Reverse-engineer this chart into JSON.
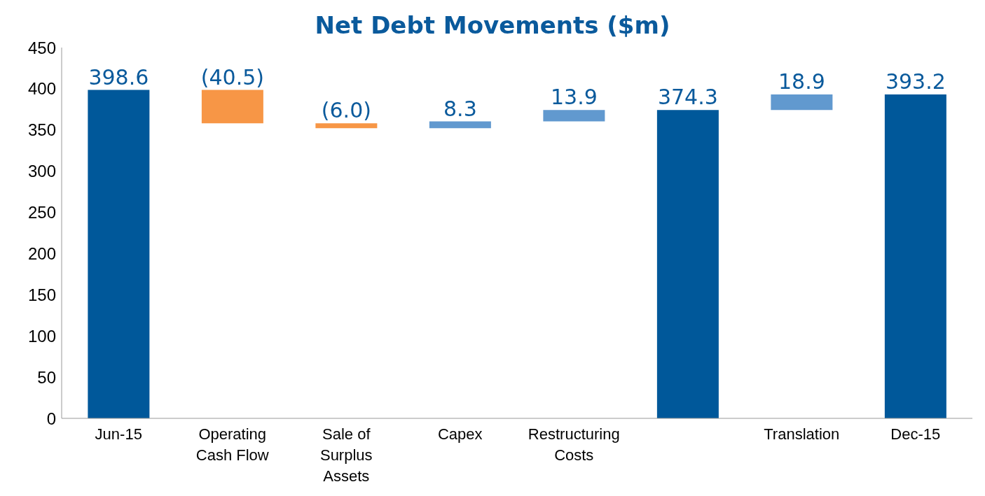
{
  "chart_data": {
    "type": "bar",
    "title": "Net Debt Movements ($m)",
    "categories": [
      "Jun-15",
      "Operating Cash Flow",
      "Sale of Surplus Assets",
      "Capex",
      "Restructuring Costs",
      null,
      "Translation",
      "Dec-15"
    ],
    "values": [
      398.6,
      -40.5,
      -6.0,
      8.3,
      13.9,
      374.3,
      18.9,
      393.2
    ],
    "base": [
      0,
      398.6,
      358.1,
      352.1,
      360.4,
      0,
      374.3,
      0
    ],
    "colors": [
      "#00589a",
      "#f79646",
      "#f79646",
      "#6199cf",
      "#6199cf",
      "#00589a",
      "#6199cf",
      "#00589a"
    ],
    "value_labels": [
      "398.6",
      "(40.5)",
      "(6.0)",
      "8.3",
      "13.9",
      "374.3",
      "18.9",
      "393.2"
    ],
    "ylim": [
      0,
      450
    ],
    "yticks": [
      0,
      50,
      100,
      150,
      200,
      250,
      300,
      350,
      400,
      450
    ]
  }
}
